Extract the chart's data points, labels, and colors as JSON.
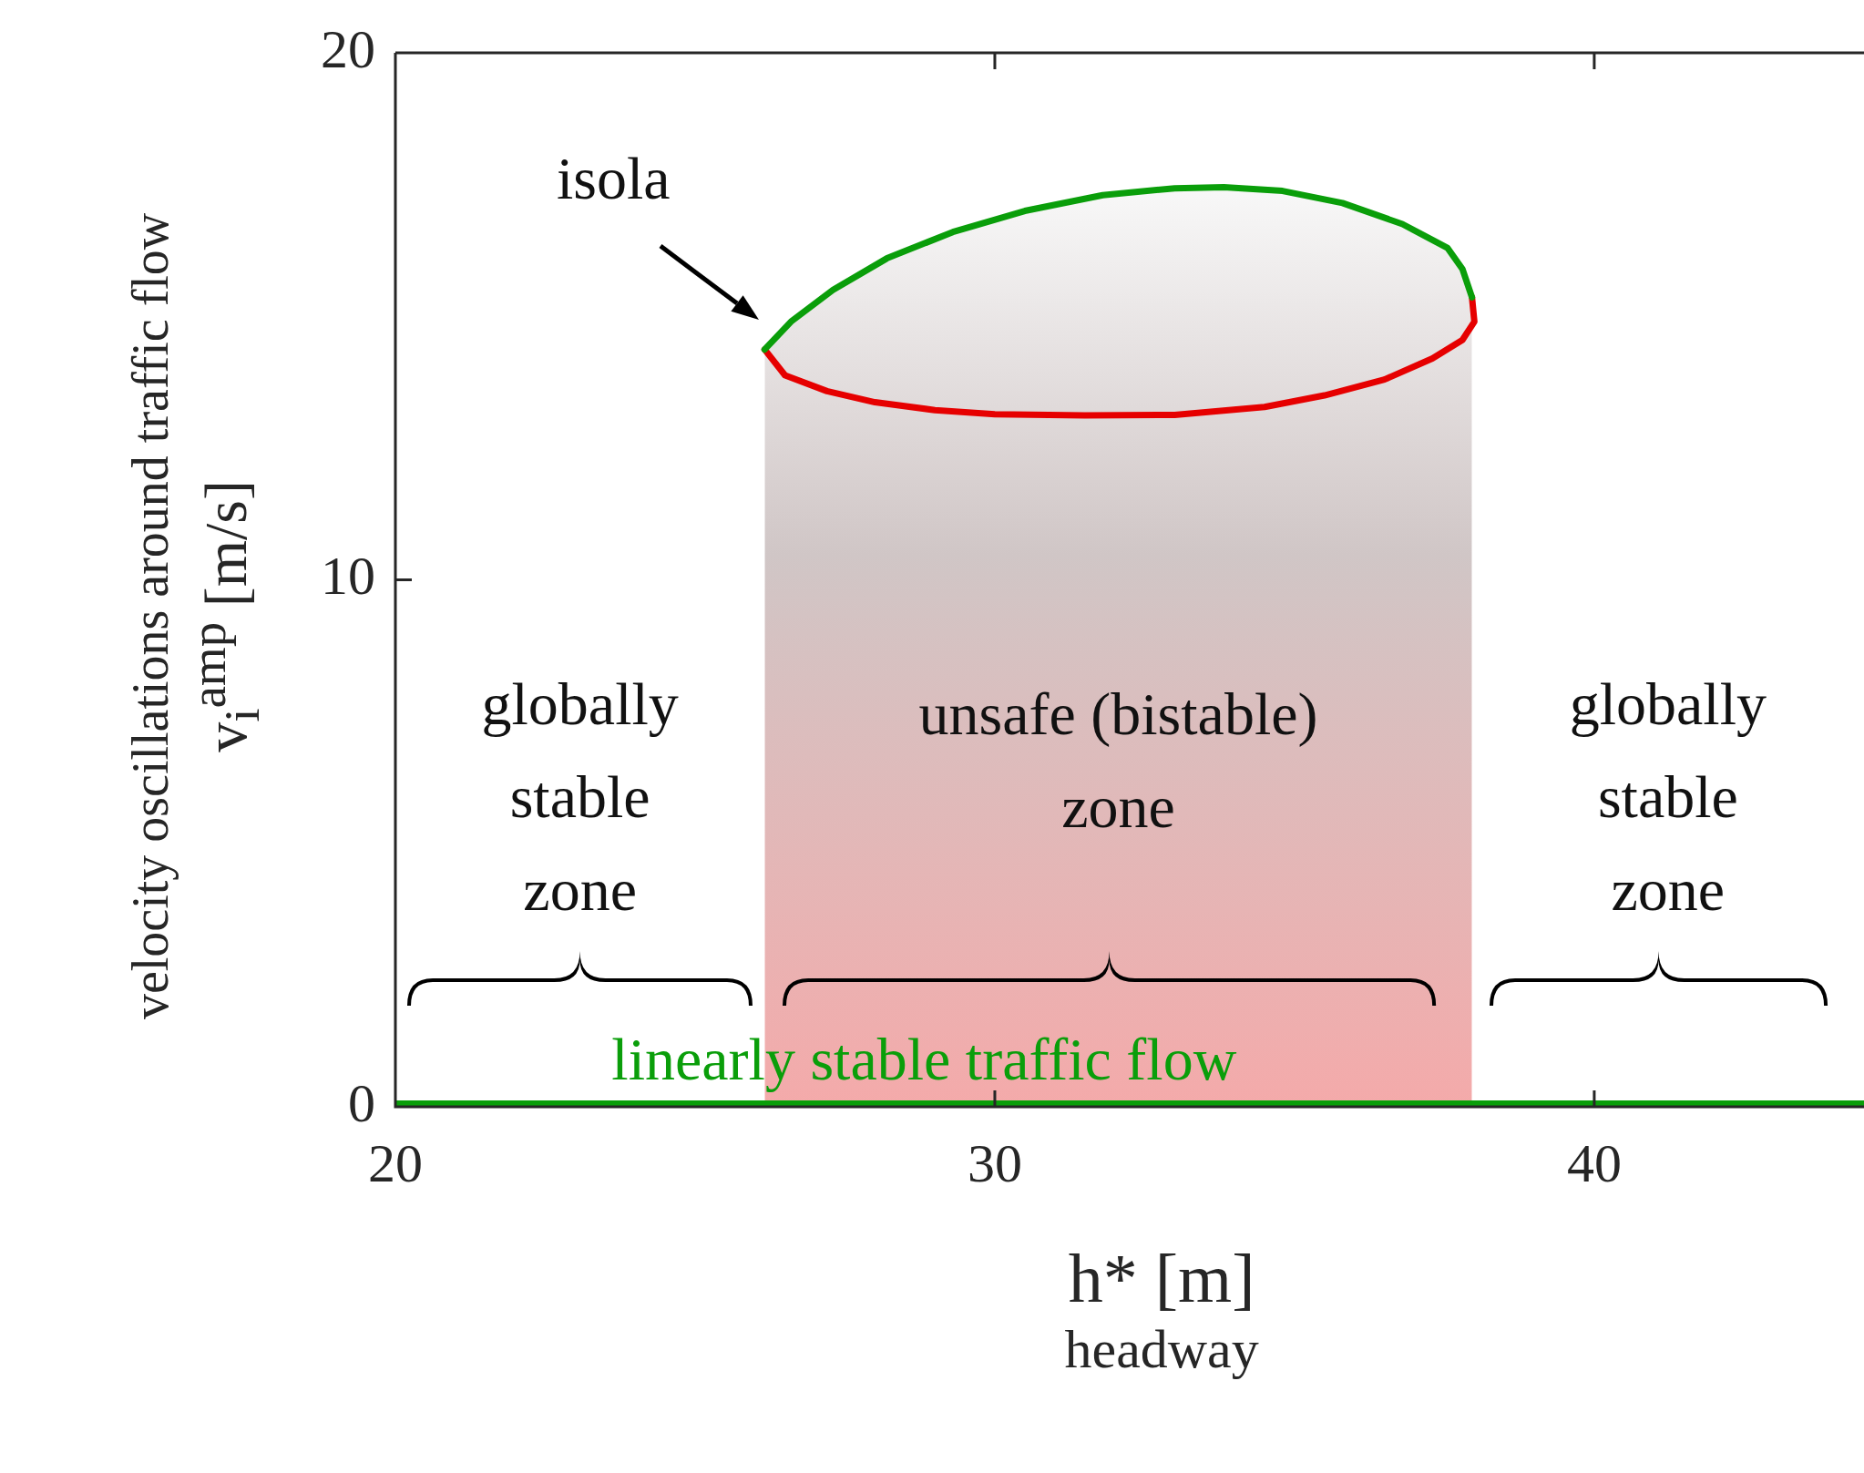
{
  "chart_data": {
    "type": "line",
    "xlabel": "h* [m]\nheadway",
    "ylabel": "velocity oscillations around traffic flow\nv$_{i}$$^{amp}$ [m/s]",
    "xlim": [
      20,
      44.5
    ],
    "xticks": [
      20,
      30,
      40
    ],
    "ylim": [
      0,
      20
    ],
    "yticks": [
      0,
      10,
      20
    ],
    "series": [
      {
        "color": "#0a9e0a",
        "x": [
          26.16,
          26.6,
          27.3,
          28.2,
          29.3,
          30.5,
          31.8,
          33.0,
          33.82,
          34.8,
          35.8,
          36.8,
          37.55,
          37.8,
          37.96
        ],
        "values": [
          14.37,
          14.9,
          15.5,
          16.1,
          16.6,
          17.0,
          17.3,
          17.43,
          17.45,
          17.38,
          17.15,
          16.75,
          16.3,
          15.9,
          15.36
        ]
      },
      {
        "color": "#e60000",
        "x": [
          37.96,
          38.0,
          37.8,
          37.3,
          36.5,
          35.5,
          34.5,
          33.0,
          31.5,
          30.0,
          29.0,
          28.0,
          27.2,
          26.5,
          26.16
        ],
        "values": [
          15.36,
          14.9,
          14.55,
          14.2,
          13.8,
          13.5,
          13.28,
          13.13,
          13.12,
          13.14,
          13.22,
          13.37,
          13.58,
          13.88,
          14.37
        ]
      },
      {
        "name": "linearly stable traffic flow",
        "color": "#0a9e0a",
        "x": [
          20,
          44.5
        ],
        "values": [
          0,
          0
        ]
      }
    ],
    "bands": [
      {
        "axis": "x",
        "from": 26.16,
        "to": 37.96,
        "label": "unsafe (bistable)\nzone",
        "color": "#f4aaaa"
      }
    ],
    "annotations": [
      {
        "text": "isola",
        "x": 26.16,
        "y": 14.37
      },
      "globally\nstable\nzone",
      "globally\nstable\nzone"
    ]
  }
}
